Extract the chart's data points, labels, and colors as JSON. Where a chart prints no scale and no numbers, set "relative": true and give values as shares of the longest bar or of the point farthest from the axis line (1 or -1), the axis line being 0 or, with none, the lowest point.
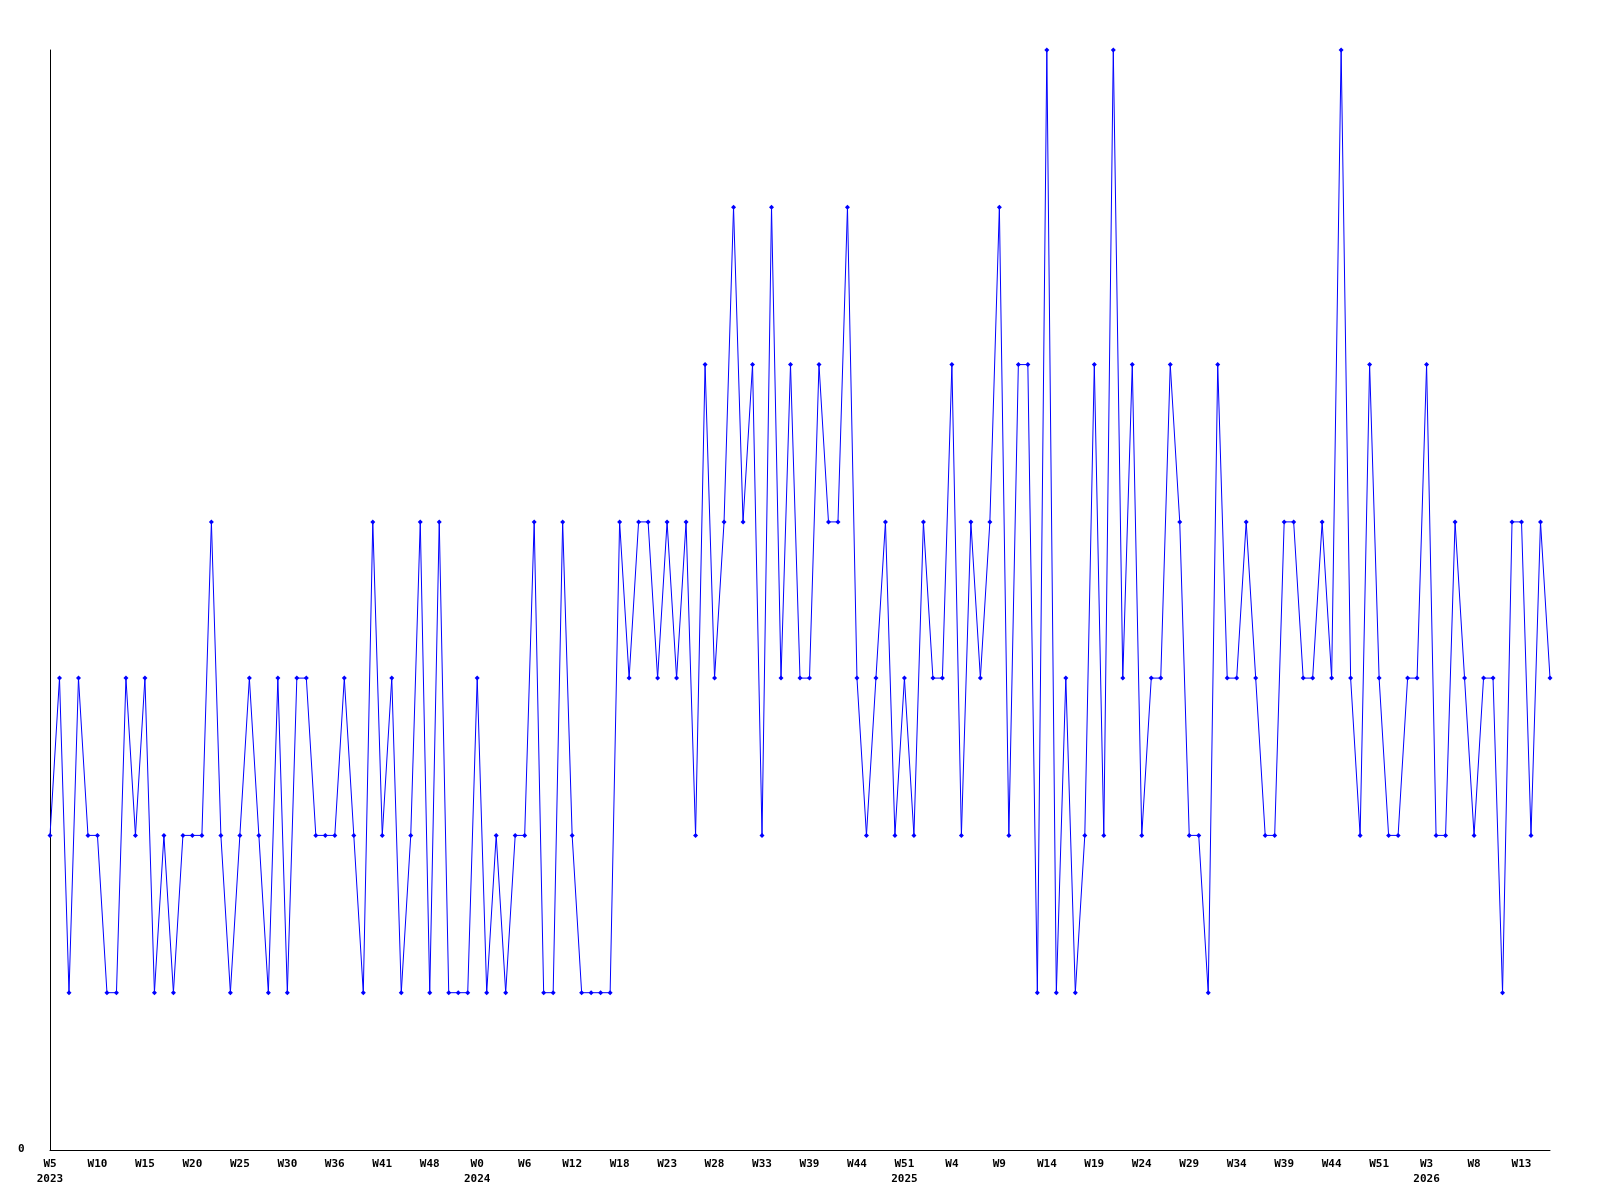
{
  "chart_data": {
    "type": "line",
    "relative": true,
    "marker": "diamond",
    "annotations": [
      "0"
    ],
    "categories": [
      "W5\n2023",
      null,
      null,
      null,
      null,
      "W10",
      null,
      null,
      null,
      null,
      "W15",
      null,
      null,
      null,
      null,
      "W20",
      null,
      null,
      null,
      null,
      "W25",
      null,
      null,
      null,
      null,
      "W30",
      null,
      null,
      null,
      null,
      "W36",
      null,
      null,
      null,
      null,
      "W41",
      null,
      null,
      null,
      null,
      "W48",
      null,
      null,
      null,
      null,
      "W0\n2024",
      null,
      null,
      null,
      null,
      "W6",
      null,
      null,
      null,
      null,
      "W12",
      null,
      null,
      null,
      null,
      "W18",
      null,
      null,
      null,
      null,
      "W23",
      null,
      null,
      null,
      null,
      "W28",
      null,
      null,
      null,
      null,
      "W33",
      null,
      null,
      null,
      null,
      "W39",
      null,
      null,
      null,
      null,
      "W44",
      null,
      null,
      null,
      null,
      "W51\n2025",
      null,
      null,
      null,
      null,
      "W4",
      null,
      null,
      null,
      null,
      "W9",
      null,
      null,
      null,
      null,
      "W14",
      null,
      null,
      null,
      null,
      "W19",
      null,
      null,
      null,
      null,
      "W24",
      null,
      null,
      null,
      null,
      "W29",
      null,
      null,
      null,
      null,
      "W34",
      null,
      null,
      null,
      null,
      "W39",
      null,
      null,
      null,
      null,
      "W44",
      null,
      null,
      null,
      null,
      "W51",
      null,
      null,
      null,
      null,
      "W3\n2026",
      null,
      null,
      null,
      null,
      "W8",
      null,
      null,
      null,
      null,
      "W13",
      null,
      null,
      null
    ],
    "series": [
      {
        "color": "#0000ff",
        "values": [
          0.286,
          0.429,
          0.143,
          0.429,
          0.286,
          0.286,
          0.143,
          0.143,
          0.429,
          0.286,
          0.429,
          0.143,
          0.286,
          0.143,
          0.286,
          0.286,
          0.286,
          0.571,
          0.286,
          0.143,
          0.286,
          0.429,
          0.286,
          0.143,
          0.429,
          0.143,
          0.429,
          0.429,
          0.286,
          0.286,
          0.286,
          0.429,
          0.286,
          0.143,
          0.571,
          0.286,
          0.429,
          0.143,
          0.286,
          0.571,
          0.143,
          0.571,
          0.143,
          0.143,
          0.143,
          0.429,
          0.143,
          0.286,
          0.143,
          0.286,
          0.286,
          0.571,
          0.143,
          0.143,
          0.571,
          0.286,
          0.143,
          0.143,
          0.143,
          0.143,
          0.571,
          0.429,
          0.571,
          0.571,
          0.429,
          0.571,
          0.429,
          0.571,
          0.286,
          0.714,
          0.429,
          0.571,
          0.857,
          0.571,
          0.714,
          0.286,
          0.857,
          0.429,
          0.714,
          0.429,
          0.429,
          0.714,
          0.571,
          0.571,
          0.857,
          0.429,
          0.286,
          0.429,
          0.571,
          0.286,
          0.429,
          0.286,
          0.571,
          0.429,
          0.429,
          0.714,
          0.286,
          0.571,
          0.429,
          0.571,
          0.857,
          0.286,
          0.714,
          0.714,
          0.143,
          1,
          0.143,
          0.429,
          0.143,
          0.286,
          0.714,
          0.286,
          1,
          0.429,
          0.714,
          0.286,
          0.429,
          0.429,
          0.714,
          0.571,
          0.286,
          0.286,
          0.143,
          0.714,
          0.429,
          0.429,
          0.571,
          0.429,
          0.286,
          0.286,
          0.571,
          0.571,
          0.429,
          0.429,
          0.571,
          0.429,
          1,
          0.429,
          0.286,
          0.714,
          0.429,
          0.286,
          0.286,
          0.429,
          0.429,
          0.714,
          0.286,
          0.286,
          0.571,
          0.429,
          0.286,
          0.429,
          0.429,
          0.143,
          0.571,
          0.571,
          0.286,
          0.571,
          0.429
        ]
      }
    ]
  }
}
